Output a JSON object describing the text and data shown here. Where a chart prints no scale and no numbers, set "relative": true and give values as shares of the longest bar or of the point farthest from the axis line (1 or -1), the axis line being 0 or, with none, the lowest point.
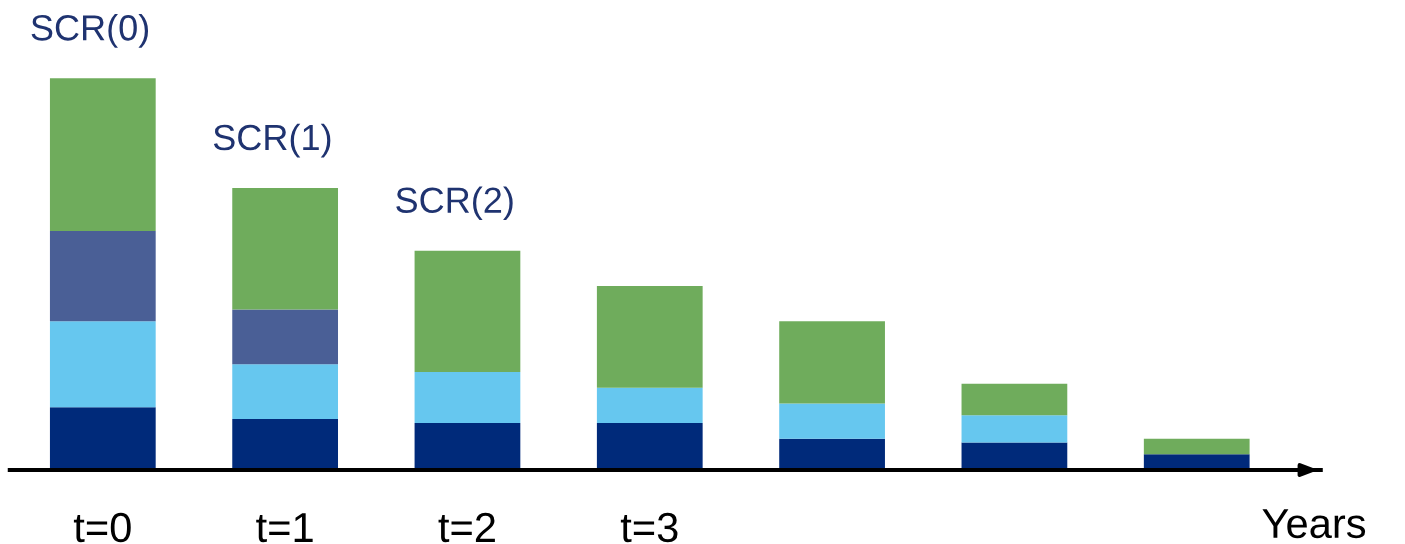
{
  "chart_data": {
    "type": "bar",
    "stacked": true,
    "relative": true,
    "xlabel": "Years",
    "categories": [
      "t=0",
      "t=1",
      "t=2",
      "t=3",
      null,
      null,
      null
    ],
    "series": [
      {
        "color": "#002a7a",
        "values": [
          0.16,
          0.13,
          0.12,
          0.12,
          0.08,
          0.07,
          0.04
        ]
      },
      {
        "color": "#66c7ef",
        "values": [
          0.22,
          0.14,
          0.13,
          0.09,
          0.09,
          0.07,
          0
        ]
      },
      {
        "color": "#4a5f96",
        "values": [
          0.23,
          0.14,
          0,
          0,
          0,
          0,
          0
        ]
      },
      {
        "color": "#6fac5c",
        "values": [
          0.39,
          0.31,
          0.31,
          0.26,
          0.21,
          0.08,
          0.04
        ]
      }
    ],
    "totals": [
      "SCR(0)",
      "SCR(1)",
      "SCR(2)",
      null,
      null,
      null,
      null
    ]
  }
}
